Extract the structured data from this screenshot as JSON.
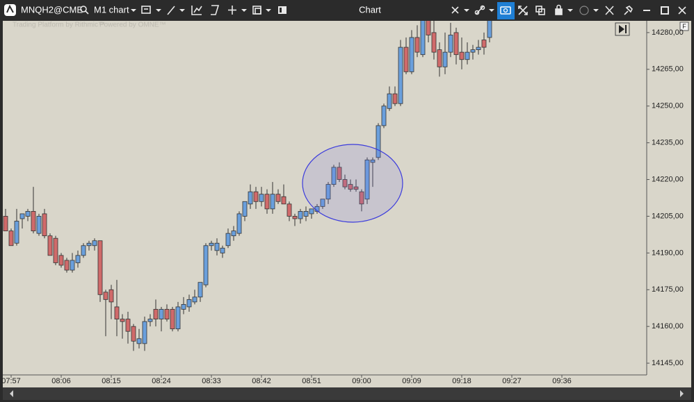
{
  "toolbar": {
    "symbol": "MNQH2@CME",
    "chart_name": "M1 chart",
    "window_title": "Chart"
  },
  "watermark": {
    "left": "Trading Platform by Rithmic™",
    "right": "Powered by OMNE™"
  },
  "corner_label": "F",
  "chart_data": {
    "type": "candlestick",
    "up_color": "#6a9fdc",
    "down_color": "#d06a6a",
    "wick_color": "#333333",
    "background": "#d9d6ca",
    "categories": [
      null,
      "07:57",
      null,
      null,
      null,
      null,
      null,
      null,
      null,
      null,
      "08:06",
      null,
      null,
      null,
      null,
      null,
      null,
      null,
      null,
      "08:15",
      null,
      null,
      null,
      null,
      null,
      null,
      null,
      null,
      "08:24",
      null,
      null,
      null,
      null,
      null,
      null,
      null,
      null,
      "08:33",
      null,
      null,
      null,
      null,
      null,
      null,
      null,
      null,
      "08:42",
      null,
      null,
      null,
      null,
      null,
      null,
      null,
      null,
      "08:51",
      null,
      null,
      null,
      null,
      null,
      null,
      null,
      null,
      "09:00",
      null,
      null,
      null,
      null,
      null,
      null,
      null,
      null,
      "09:09",
      null,
      null,
      null,
      null,
      null,
      null,
      null,
      null,
      "09:18",
      null,
      null,
      null,
      null,
      null,
      null,
      null,
      null,
      "09:27",
      null,
      null,
      null,
      null,
      null,
      null,
      null,
      null,
      "09:36"
    ],
    "open": [
      14205,
      14199,
      14194,
      14204,
      14205,
      14207,
      14198,
      14206,
      14197,
      14196,
      14189,
      14187,
      14183,
      14186,
      14189,
      14193,
      14193,
      14195,
      14174,
      14175,
      14168,
      14163,
      14163,
      14160,
      14153,
      14153,
      14162,
      14167,
      14163,
      14167,
      14167,
      14159,
      14167,
      14168,
      14170,
      14172,
      14177,
      14193,
      14191,
      14190,
      14193,
      14197,
      14198,
      14205,
      14210,
      14215,
      14211,
      14214,
      14208,
      14214,
      14213,
      14210,
      14205,
      14204,
      14205,
      14206,
      14207,
      14209,
      14212,
      14218,
      14225,
      14220,
      14218,
      14217,
      14215,
      14212,
      14227,
      14229,
      14242,
      14249,
      14255,
      14251,
      14274,
      14264,
      14278,
      14271,
      14285,
      14280,
      14273,
      14266,
      14272,
      14280,
      14272,
      14269,
      14272,
      14273,
      14277,
      14278,
      null,
      null,
      null,
      null,
      null,
      null,
      null,
      null,
      null,
      null,
      null,
      null,
      null
    ],
    "high": [
      14208,
      14200,
      14208,
      14206,
      14208,
      14217,
      14206,
      14208,
      14198,
      14197,
      14190,
      14188,
      14190,
      14191,
      14194,
      14195,
      14196,
      14195,
      14175,
      14177,
      14179,
      14165,
      14166,
      14161,
      14159,
      14164,
      14165,
      14171,
      14168,
      14169,
      14168,
      14170,
      14172,
      14173,
      14175,
      14178,
      14194,
      14195,
      14196,
      14193,
      14200,
      14201,
      14207,
      14211,
      14218,
      14217,
      14217,
      14216,
      14219,
      14216,
      14218,
      14211,
      14206,
      14208,
      14209,
      14208,
      14210,
      14212,
      14219,
      14226,
      14227,
      14222,
      14220,
      14220,
      14216,
      14229,
      14229,
      14243,
      14251,
      14258,
      14258,
      14277,
      14278,
      14281,
      14283,
      14287,
      14287,
      14288,
      14276,
      14280,
      14284,
      14282,
      14278,
      14276,
      14275,
      14277,
      14280,
      14288,
      null,
      null,
      null,
      null,
      null,
      null,
      null,
      null,
      null,
      null,
      null,
      null,
      null
    ],
    "low": [
      14199,
      14193,
      14193,
      14200,
      14203,
      14198,
      14197,
      14196,
      14189,
      14185,
      14184,
      14182,
      14182,
      14184,
      14188,
      14191,
      14191,
      14170,
      14156,
      14163,
      14156,
      14155,
      14153,
      14150,
      14151,
      14150,
      14160,
      14160,
      14158,
      14162,
      14158,
      14158,
      14165,
      14166,
      14169,
      14170,
      14176,
      14191,
      14189,
      14188,
      14192,
      14195,
      14197,
      14203,
      14208,
      14208,
      14209,
      14206,
      14206,
      14210,
      14210,
      14203,
      14201,
      14202,
      14203,
      14204,
      14206,
      14208,
      14210,
      14217,
      14219,
      14216,
      14215,
      14215,
      14207,
      14210,
      14217,
      14228,
      14241,
      14248,
      14250,
      14250,
      14263,
      14263,
      14270,
      14270,
      14276,
      14269,
      14262,
      14263,
      14270,
      14267,
      14265,
      14267,
      14269,
      14271,
      14271,
      14276,
      null,
      null,
      null,
      null,
      null,
      null,
      null,
      null,
      null,
      null,
      null,
      null,
      null
    ],
    "close": [
      14199,
      14193,
      14203,
      14206,
      14207,
      14199,
      14205,
      14197,
      14189,
      14186,
      14185,
      14183,
      14187,
      14189,
      14193,
      14194,
      14195,
      14173,
      14171,
      14170,
      14163,
      14162,
      14158,
      14154,
      14155,
      14162,
      14163,
      14163,
      14167,
      14163,
      14159,
      14168,
      14169,
      14171,
      14172,
      14178,
      14193,
      14194,
      14194,
      14192,
      14198,
      14199,
      14206,
      14211,
      14215,
      14211,
      14214,
      14208,
      14214,
      14211,
      14210,
      14205,
      14204,
      14207,
      14207,
      14208,
      14209,
      14212,
      14218,
      14225,
      14220,
      14217,
      14216,
      14216,
      14210,
      14228,
      14228,
      14242,
      14250,
      14255,
      14251,
      14274,
      14264,
      14278,
      14272,
      14285,
      14279,
      14272,
      14266,
      14272,
      14279,
      14271,
      14269,
      14272,
      14273,
      14274,
      14274,
      14286,
      null,
      null,
      null,
      null,
      null,
      null,
      null,
      null,
      null,
      null,
      null,
      null,
      null
    ],
    "ylim": [
      14140.2,
      14284.8
    ],
    "yticks": [
      {
        "value": 14145,
        "label": "14145,00"
      },
      {
        "value": 14160,
        "label": "14160,00"
      },
      {
        "value": 14175,
        "label": "14175,00"
      },
      {
        "value": 14190,
        "label": "14190,00"
      },
      {
        "value": 14205,
        "label": "14205,00"
      },
      {
        "value": 14220,
        "label": "14220,00"
      },
      {
        "value": 14235,
        "label": "14235,00"
      },
      {
        "value": 14250,
        "label": "14250,00"
      },
      {
        "value": 14265,
        "label": "14265,00"
      },
      {
        "value": 14280,
        "label": "14280,00"
      }
    ],
    "grid": false
  }
}
